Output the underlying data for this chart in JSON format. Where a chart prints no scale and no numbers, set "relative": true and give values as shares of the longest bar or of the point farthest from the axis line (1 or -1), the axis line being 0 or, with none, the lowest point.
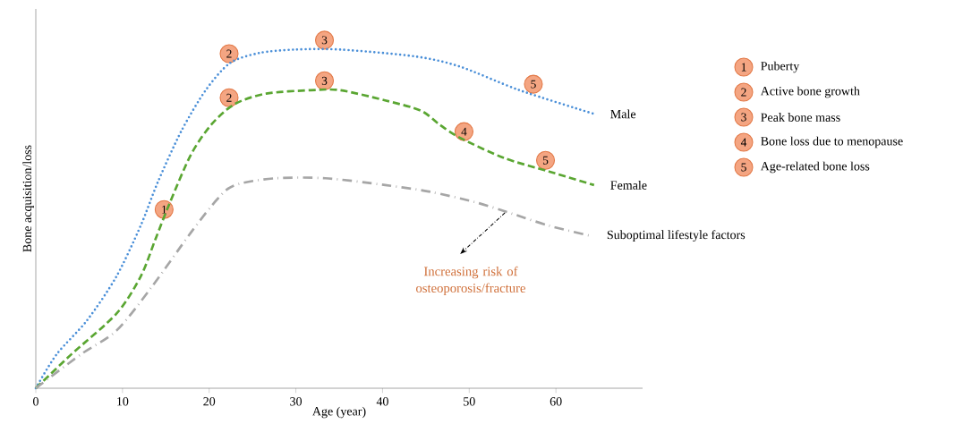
{
  "chart_data": {
    "type": "line",
    "relative": true,
    "xlabel": "Age (year)",
    "ylabel": "Bone acquisition/loss",
    "xlim": [
      0,
      70
    ],
    "xticks": [
      0,
      10,
      20,
      30,
      40,
      50,
      60
    ],
    "series": [
      {
        "name": "Male",
        "color": "#4a8fd8",
        "line_style": "dotted",
        "x": [
          0,
          2.4,
          5.9,
          9.3,
          12.1,
          14.1,
          16.8,
          19.6,
          22.4,
          25.8,
          29.9,
          35.1,
          43.7,
          48.9,
          55.8,
          64.4
        ],
        "values": [
          0,
          0.1,
          0.2,
          0.33,
          0.48,
          0.61,
          0.76,
          0.88,
          0.96,
          0.99,
          1.0,
          1.0,
          0.98,
          0.95,
          0.88,
          0.81
        ]
      },
      {
        "name": "Female",
        "color": "#5aa632",
        "line_style": "dashed",
        "x": [
          0,
          4.1,
          9.3,
          12.1,
          13.8,
          15.5,
          17.9,
          20.3,
          23.0,
          26.6,
          31.7,
          35.1,
          40.3,
          44.4,
          46.5,
          48.9,
          54.0,
          59.2,
          64.4
        ],
        "values": [
          0,
          0.1,
          0.22,
          0.33,
          0.44,
          0.55,
          0.69,
          0.78,
          0.84,
          0.87,
          0.88,
          0.88,
          0.85,
          0.82,
          0.78,
          0.74,
          0.68,
          0.64,
          0.6
        ]
      },
      {
        "name": "Suboptimal lifestyle factors",
        "color": "#a6a6a6",
        "line_style": "dashdot",
        "x": [
          0,
          5.2,
          9.3,
          13.4,
          17.9,
          21.0,
          23.0,
          27.6,
          33.4,
          40.3,
          45.5,
          50.6,
          54.4,
          59.2,
          64.0
        ],
        "values": [
          0,
          0.1,
          0.17,
          0.3,
          0.46,
          0.56,
          0.6,
          0.62,
          0.62,
          0.6,
          0.58,
          0.55,
          0.52,
          0.48,
          0.45
        ]
      }
    ],
    "annotations": [
      {
        "text": "1",
        "x": 14.8,
        "y": 0.5
      },
      {
        "text": "2",
        "x": 22.3,
        "y": 0.96
      },
      {
        "text": "2",
        "x": 22.3,
        "y": 0.83
      },
      {
        "text": "3",
        "x": 33.3,
        "y": 1.0
      },
      {
        "text": "3",
        "x": 33.3,
        "y": 0.88
      },
      {
        "text": "4",
        "x": 49.4,
        "y": 0.73
      },
      {
        "text": "5",
        "x": 57.4,
        "y": 0.87
      },
      {
        "text": "5",
        "x": 58.8,
        "y": 0.645
      },
      {
        "text": "Increasing risk of osteoporosis/fracture",
        "x": 54.2,
        "y": 0.52
      },
      "1",
      "Puberty",
      "2",
      "Active bone growth",
      "3",
      "Peak bone mass",
      "4",
      "Bone loss due to menopause",
      "5",
      "Age-related bone loss"
    ]
  }
}
